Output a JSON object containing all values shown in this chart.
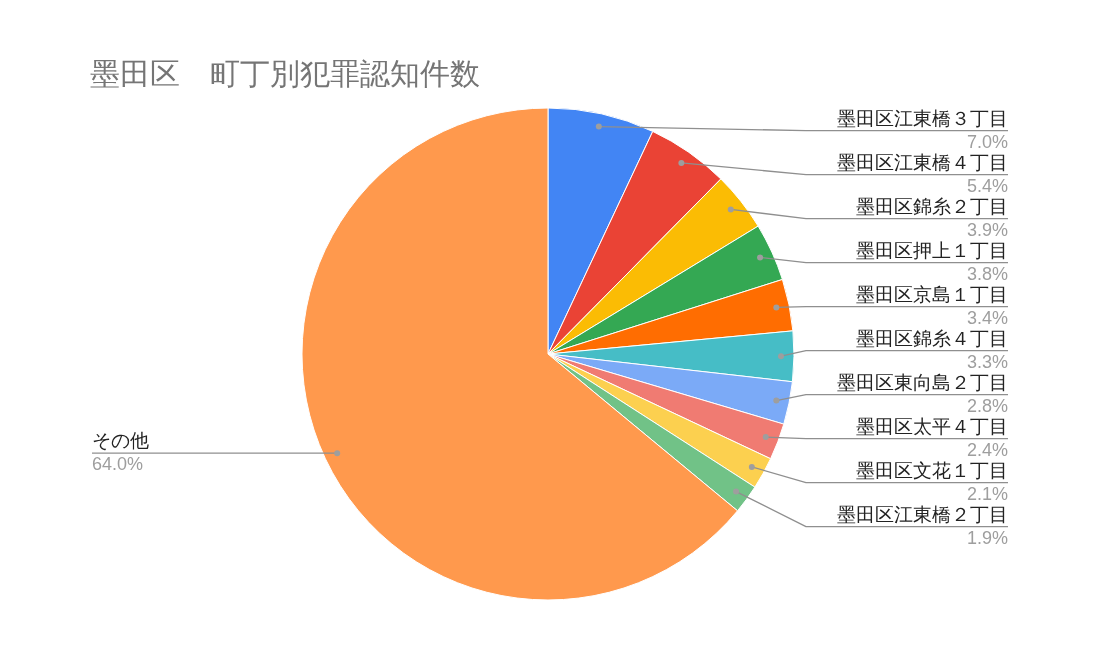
{
  "chart_data": {
    "type": "pie",
    "title": "墨田区　町丁別犯罪認知件数",
    "categories": [
      "墨田区江東橋３丁目",
      "墨田区江東橋４丁目",
      "墨田区錦糸２丁目",
      "墨田区押上１丁目",
      "墨田区京島１丁目",
      "墨田区錦糸４丁目",
      "墨田区東向島２丁目",
      "墨田区太平４丁目",
      "墨田区文花１丁目",
      "墨田区江東橋２丁目",
      "その他"
    ],
    "values": [
      7.0,
      5.4,
      3.9,
      3.8,
      3.4,
      3.3,
      2.8,
      2.4,
      2.1,
      1.9,
      64.0
    ],
    "colors": [
      "#4285f4",
      "#ea4335",
      "#fbbc04",
      "#34a853",
      "#ff6d01",
      "#46bdc6",
      "#7baaf7",
      "#f07b72",
      "#fcd04f",
      "#71c287",
      "#ff994d"
    ],
    "value_labels": [
      "7.0%",
      "5.4%",
      "3.9%",
      "3.8%",
      "3.4%",
      "3.3%",
      "2.8%",
      "2.4%",
      "2.1%",
      "1.9%",
      "64.0%"
    ]
  }
}
